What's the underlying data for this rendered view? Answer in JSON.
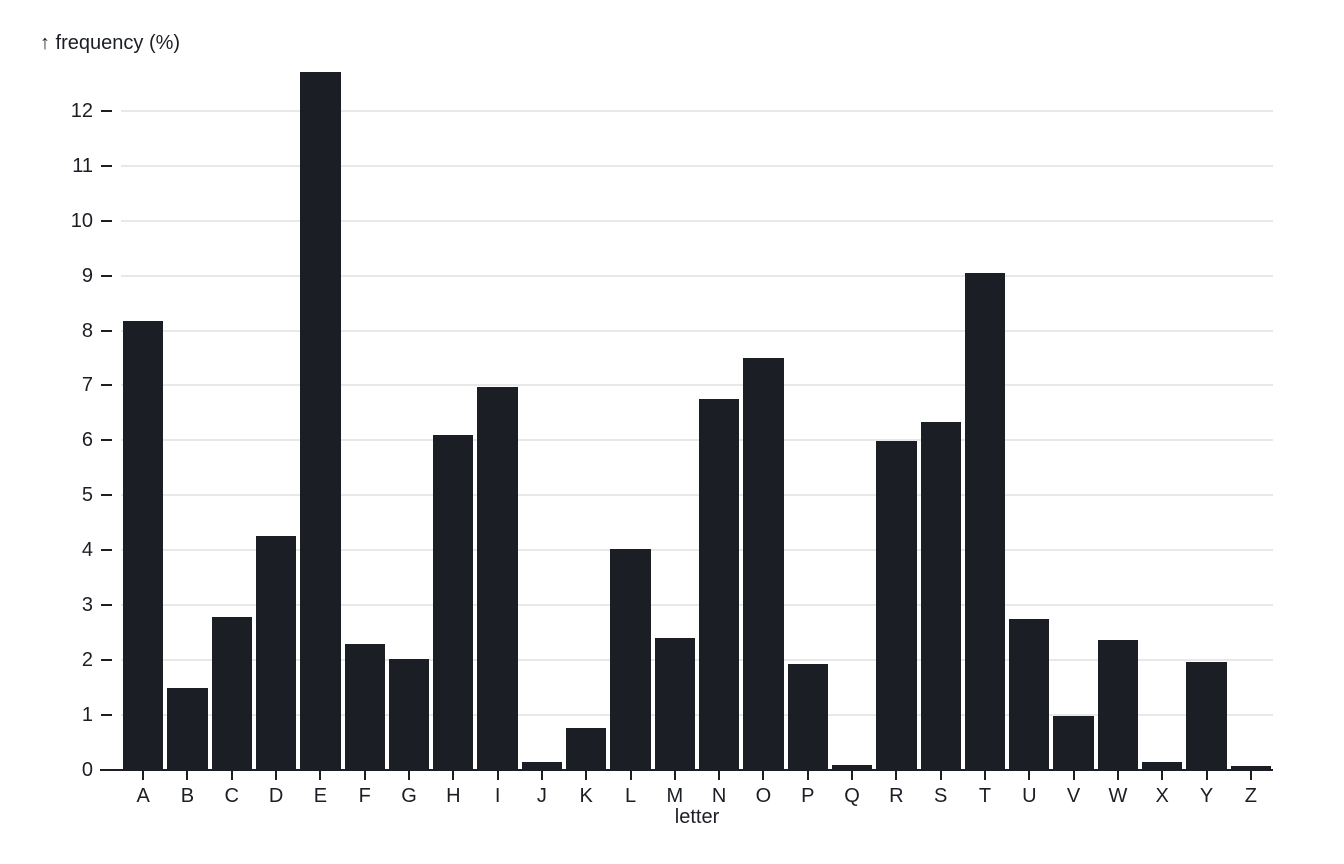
{
  "chart_data": {
    "type": "bar",
    "title": "",
    "y_title": "↑ frequency (%)",
    "x_title": "letter",
    "categories": [
      "A",
      "B",
      "C",
      "D",
      "E",
      "F",
      "G",
      "H",
      "I",
      "J",
      "K",
      "L",
      "M",
      "N",
      "O",
      "P",
      "Q",
      "R",
      "S",
      "T",
      "U",
      "V",
      "W",
      "X",
      "Y",
      "Z"
    ],
    "values": [
      8.167,
      1.492,
      2.782,
      4.253,
      12.702,
      2.288,
      2.015,
      6.094,
      6.966,
      0.153,
      0.772,
      4.025,
      2.406,
      6.749,
      7.507,
      1.929,
      0.095,
      5.987,
      6.327,
      9.056,
      2.758,
      0.978,
      2.36,
      0.15,
      1.974,
      0.074
    ],
    "y_ticks": [
      0,
      1,
      2,
      3,
      4,
      5,
      6,
      7,
      8,
      9,
      10,
      11,
      12
    ],
    "ylim": [
      0,
      12.93
    ],
    "grid": true,
    "legend": "none",
    "colors": {
      "bar": "#1b1e24",
      "axis_text": "#1b1e24",
      "axis_line": "#1b1e24",
      "gridline": "#e8e8e8",
      "background": "#ffffff"
    }
  }
}
